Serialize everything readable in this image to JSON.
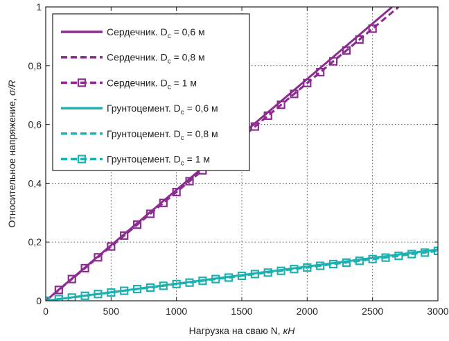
{
  "chart_data": {
    "type": "line",
    "xlabel_main": "Нагрузка на сваю N, ",
    "xlabel_unit": "кН",
    "ylabel_main": "Относительное напряжение, ",
    "ylabel_unit": "σ/R",
    "xlim": [
      0,
      3000
    ],
    "ylim": [
      0,
      1
    ],
    "xticks": [
      0,
      500,
      1000,
      1500,
      2000,
      2500,
      3000
    ],
    "xtick_labels": [
      "0",
      "500",
      "1000",
      "1500",
      "2000",
      "2500",
      "3000"
    ],
    "yticks": [
      0,
      0.2,
      0.4,
      0.6,
      0.8,
      1
    ],
    "ytick_labels": [
      "0",
      "0,2",
      "0,4",
      "0,6",
      "0,8",
      "1"
    ],
    "grid": true,
    "legend_position": "top-left",
    "colors": {
      "purple": "#8c2c90",
      "teal": "#1fb0b0",
      "axis": "#222222"
    },
    "series": [
      {
        "name": "Сердечник. D",
        "sub": "c",
        "suffix": " = 0,6 м",
        "color": "#8c2c90",
        "style": "solid",
        "marker": "none",
        "x": [
          0,
          2650
        ],
        "y": [
          0,
          1.0
        ]
      },
      {
        "name": "Сердечник. D",
        "sub": "c",
        "suffix": " = 0,8 м",
        "color": "#8c2c90",
        "style": "dashed",
        "marker": "none",
        "x": [
          0,
          2700
        ],
        "y": [
          0,
          1.0
        ]
      },
      {
        "name": "Сердечник. D",
        "sub": "c",
        "suffix": " = 1 м",
        "color": "#8c2c90",
        "style": "dashed",
        "marker": "square",
        "x": [
          0,
          100,
          200,
          300,
          400,
          500,
          600,
          700,
          800,
          900,
          1000,
          1100,
          1200,
          1300,
          1400,
          1500,
          1600,
          1700,
          1800,
          1900,
          2000,
          2100,
          2200,
          2300,
          2400,
          2500
        ],
        "y": [
          0,
          0.037,
          0.074,
          0.111,
          0.148,
          0.185,
          0.222,
          0.259,
          0.296,
          0.333,
          0.37,
          0.407,
          0.444,
          0.481,
          0.519,
          0.556,
          0.593,
          0.63,
          0.667,
          0.704,
          0.741,
          0.778,
          0.815,
          0.852,
          0.889,
          0.926
        ]
      },
      {
        "name": "Грунтоцемент. D",
        "sub": "c",
        "suffix": " = 0,6 м",
        "color": "#1fb0b0",
        "style": "solid",
        "marker": "none",
        "x": [
          0,
          3000
        ],
        "y": [
          0,
          0.175
        ]
      },
      {
        "name": "Грунтоцемент. D",
        "sub": "c",
        "suffix": " = 0,8 м",
        "color": "#1fb0b0",
        "style": "dashed",
        "marker": "none",
        "x": [
          0,
          3000
        ],
        "y": [
          0,
          0.172
        ]
      },
      {
        "name": "Грунтоцемент. D",
        "sub": "c",
        "suffix": " = 1 м",
        "color": "#1fb0b0",
        "style": "dashed",
        "marker": "square",
        "x": [
          0,
          100,
          200,
          300,
          400,
          500,
          600,
          700,
          800,
          900,
          1000,
          1100,
          1200,
          1300,
          1400,
          1500,
          1600,
          1700,
          1800,
          1900,
          2000,
          2100,
          2200,
          2300,
          2400,
          2500,
          2600,
          2700,
          2800,
          2900,
          3000
        ],
        "y": [
          0,
          0.006,
          0.011,
          0.017,
          0.023,
          0.028,
          0.034,
          0.04,
          0.045,
          0.051,
          0.057,
          0.062,
          0.068,
          0.074,
          0.079,
          0.085,
          0.091,
          0.096,
          0.102,
          0.108,
          0.113,
          0.119,
          0.125,
          0.13,
          0.136,
          0.142,
          0.147,
          0.153,
          0.159,
          0.164,
          0.17
        ]
      }
    ]
  }
}
